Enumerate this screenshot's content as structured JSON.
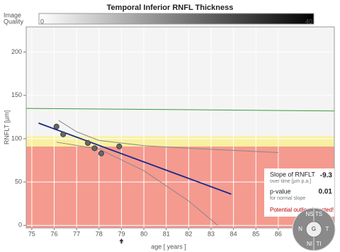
{
  "chart_data": {
    "type": "scatter",
    "title": "Temporal Inferior RNFL Thickness",
    "image_quality": {
      "labels": [
        "Image",
        "Quality"
      ],
      "ticks": [
        0,
        40
      ]
    },
    "x_label": "age [ years ]",
    "y_label": "RNFLT [µm]",
    "xlim": [
      74.75,
      88.5
    ],
    "ylim": [
      -3,
      229
    ],
    "xticks": [
      75,
      76,
      77,
      78,
      79,
      80,
      81,
      82,
      83,
      84,
      85,
      86
    ],
    "yticks": [
      0,
      50,
      100,
      150,
      200
    ],
    "grid": true,
    "bands": [
      {
        "from": -3,
        "to": 91,
        "color": "#f59a8f"
      },
      {
        "from": 91,
        "to": 103,
        "color": "#f8f0a0"
      },
      {
        "from": 103,
        "to": 229,
        "color": "#f4f4f4"
      }
    ],
    "points": {
      "color": "#666666",
      "x": [
        76.1,
        76.4,
        77.5,
        77.8,
        78.1,
        78.9
      ],
      "values": [
        114,
        105,
        95,
        89,
        83,
        91
      ]
    },
    "lines": [
      {
        "color": "#3a9a3a",
        "x": [
          74.75,
          88.5
        ],
        "values": [
          135,
          132
        ]
      },
      {
        "color": "#1a2a8a",
        "x": [
          75.3,
          83.9
        ],
        "values": [
          118,
          36
        ]
      },
      {
        "color": "#888888",
        "x": [
          76.2,
          77,
          78,
          80,
          82,
          86
        ],
        "values": [
          121,
          108,
          98,
          92,
          89,
          84
        ]
      },
      {
        "color": "#888888",
        "x": [
          76.1,
          78,
          80,
          82,
          83.3
        ],
        "values": [
          96,
          88,
          63,
          28,
          0
        ]
      }
    ],
    "outlier_x": 79,
    "stats": {
      "slope_label": "Slope of  RNFLT",
      "slope_sub": "over time [µm p.a.]",
      "slope": -9.3,
      "p_label": "p-value",
      "p_sub": "for normal slope",
      "p": 0.01,
      "warning": "Potential outlier detected!"
    },
    "navigator": [
      "NS",
      "TS",
      "N",
      "G",
      "T",
      "NI",
      "TI"
    ]
  }
}
